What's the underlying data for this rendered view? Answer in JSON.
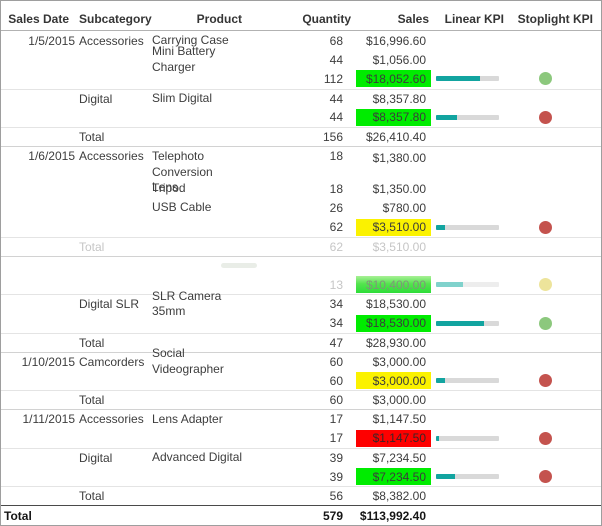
{
  "table": {
    "header": [
      "Sales Date",
      "Subcategory",
      "Product",
      "Quantity",
      "Sales",
      "Linear KPI",
      "Stoplight KPI"
    ],
    "rows": [
      {
        "date": "1/5/2015",
        "subcategory": "Accessories",
        "product": "Carrying Case",
        "quantity": "68",
        "sales": "$16,996.60"
      },
      {
        "product": "Mini Battery Charger",
        "quantity": "44",
        "sales": "$1,056.00"
      },
      {
        "type": "subtotal",
        "quantity": "112",
        "sales": "$18,052.60",
        "sales_bg": "green",
        "kpi_bar_pct": 70,
        "stoplight": "green"
      },
      {
        "subcategory": "Digital",
        "product": "Slim Digital",
        "quantity": "44",
        "sales": "$8,357.80",
        "border_top": "light"
      },
      {
        "type": "subtotal",
        "quantity": "44",
        "sales": "$8,357.80",
        "sales_bg": "green",
        "kpi_bar_pct": 33,
        "stoplight": "red"
      },
      {
        "type": "total",
        "subcategory": "Total",
        "quantity": "156",
        "sales": "$26,410.40",
        "border_top": "light"
      },
      {
        "date": "1/6/2015",
        "subcategory": "Accessories",
        "product": "Telephoto Conversion\nLens",
        "quantity": "18",
        "sales": "$1,380.00",
        "border_top": "group",
        "tall": true
      },
      {
        "product": "Tripod",
        "quantity": "18",
        "sales": "$1,350.00"
      },
      {
        "product": "USB Cable",
        "quantity": "26",
        "sales": "$780.00"
      },
      {
        "type": "subtotal",
        "quantity": "62",
        "sales": "$3,510.00",
        "sales_bg": "yellow",
        "kpi_bar_pct": 15,
        "stoplight": "red"
      },
      {
        "type": "total",
        "subcategory": "Total",
        "quantity": "62",
        "sales": "$3,510.00",
        "border_top": "light",
        "faded": true
      },
      {
        "border_top": "group",
        "ghost": true
      },
      {
        "type": "subtotal",
        "quantity": "13",
        "sales": "$10,400.00",
        "sales_bg": "green-faded",
        "kpi_bar_pct": 43,
        "stoplight": "yellow-faded",
        "faded": true
      },
      {
        "subcategory": "Digital SLR",
        "product": "SLR Camera 35mm",
        "quantity": "34",
        "sales": "$18,530.00",
        "border_top": "light"
      },
      {
        "type": "subtotal",
        "quantity": "34",
        "sales": "$18,530.00",
        "sales_bg": "green",
        "kpi_bar_pct": 76,
        "stoplight": "green"
      },
      {
        "type": "total",
        "subcategory": "Total",
        "quantity": "47",
        "sales": "$28,930.00",
        "border_top": "light"
      },
      {
        "date": "1/10/2015",
        "subcategory": "Camcorders",
        "product": "Social Videographer",
        "quantity": "60",
        "sales": "$3,000.00",
        "border_top": "group"
      },
      {
        "type": "subtotal",
        "quantity": "60",
        "sales": "$3,000.00",
        "sales_bg": "yellow",
        "kpi_bar_pct": 14,
        "stoplight": "red"
      },
      {
        "type": "total",
        "subcategory": "Total",
        "quantity": "60",
        "sales": "$3,000.00",
        "border_top": "light"
      },
      {
        "date": "1/11/2015",
        "subcategory": "Accessories",
        "product": "Lens Adapter",
        "quantity": "17",
        "sales": "$1,147.50",
        "border_top": "group"
      },
      {
        "type": "subtotal",
        "quantity": "17",
        "sales": "$1,147.50",
        "sales_bg": "red",
        "kpi_bar_pct": 5,
        "stoplight": "red"
      },
      {
        "subcategory": "Digital",
        "product": "Advanced Digital",
        "quantity": "39",
        "sales": "$7,234.50",
        "border_top": "light"
      },
      {
        "type": "subtotal",
        "quantity": "39",
        "sales": "$7,234.50",
        "sales_bg": "green",
        "kpi_bar_pct": 30,
        "stoplight": "red"
      },
      {
        "type": "total",
        "subcategory": "Total",
        "quantity": "56",
        "sales": "$8,382.00",
        "border_top": "light"
      },
      {
        "type": "grand_total",
        "label": "Total",
        "quantity": "579",
        "sales": "$113,992.40",
        "border_top": "dark"
      }
    ]
  },
  "colors": {
    "sales_bg_green": "#00EC00",
    "sales_bg_yellow": "#FBF200",
    "sales_bg_red": "#FE0000",
    "sales_bg_green_faded_top": "#A8F096",
    "sales_bg_green_faded_bottom": "#2DDD38",
    "linear_kpi_fill": "#12A4A0",
    "linear_kpi_track": "#D9D9D9",
    "stoplight_green": "#8CC87D",
    "stoplight_red": "#C4534E",
    "stoplight_yellow_faded": "#EDE49B",
    "text": "#3D3D3D",
    "faded_text": "#C6C6C6",
    "outer_border": "#9E9E9E"
  }
}
